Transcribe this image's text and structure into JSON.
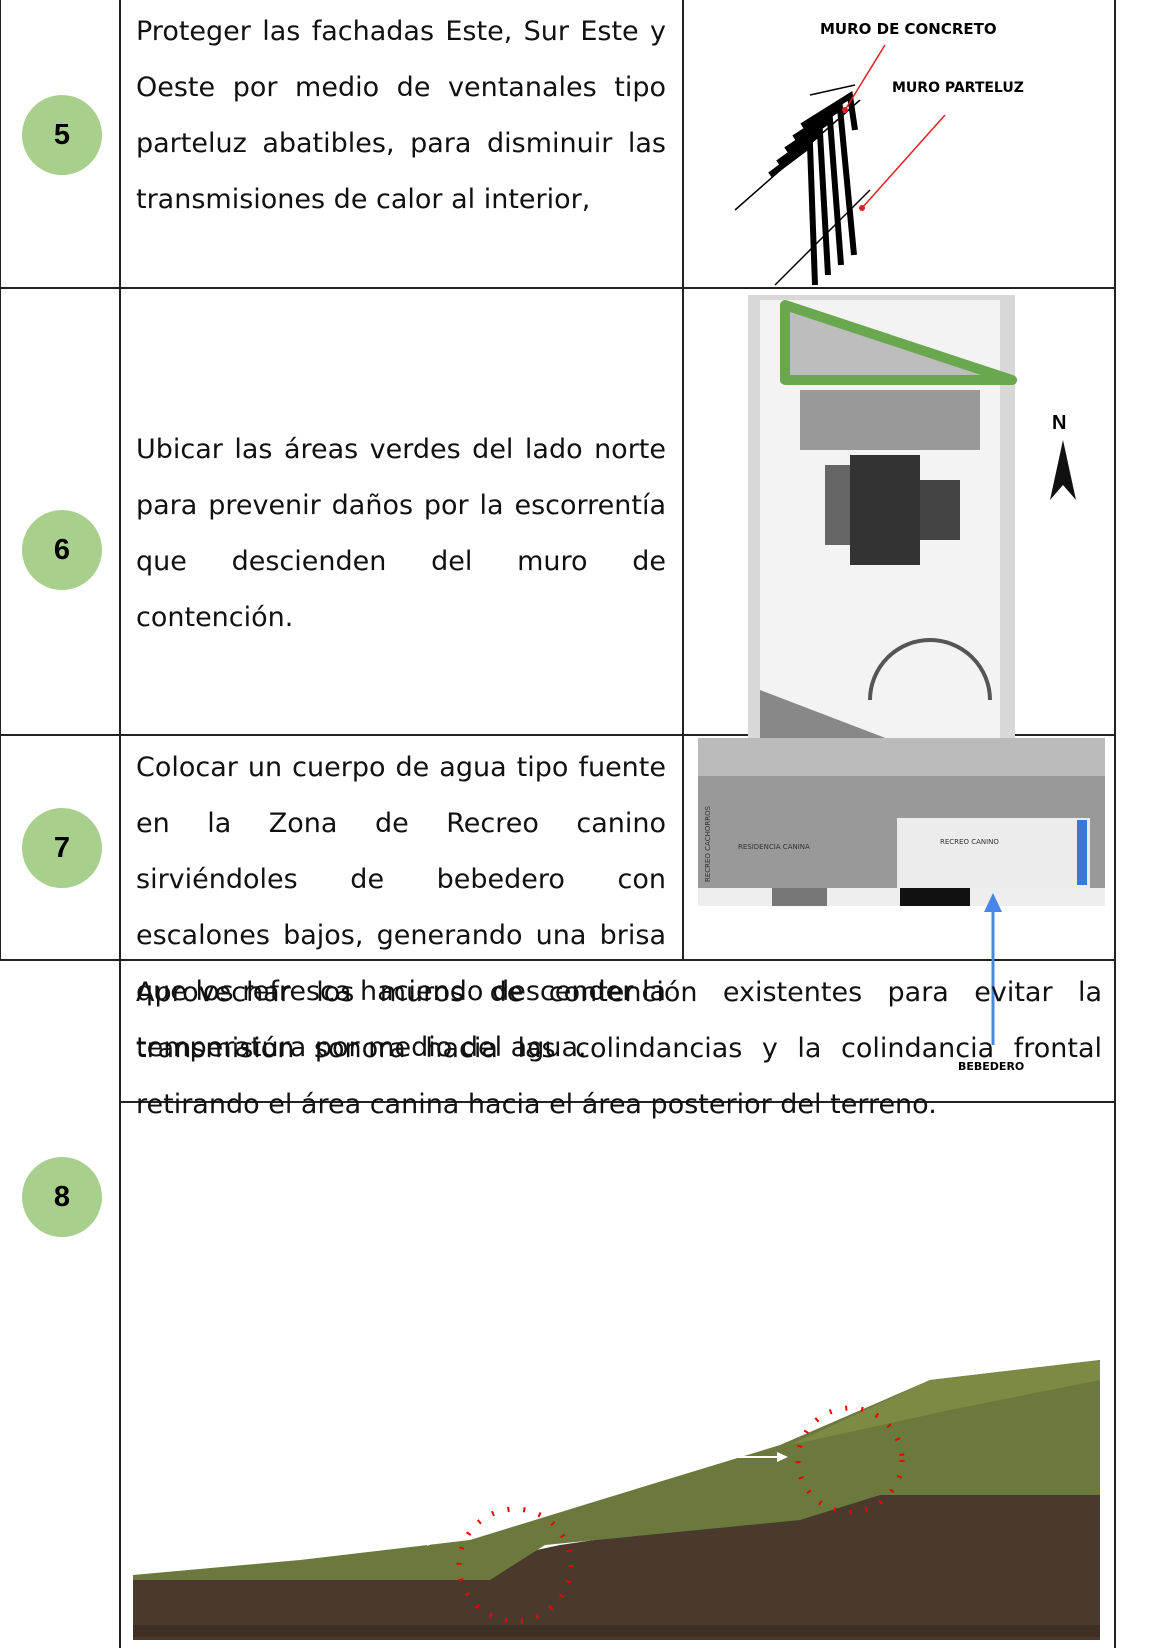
{
  "rows": [
    {
      "number": "5",
      "text": "Proteger las fachadas Este, Sur Este y Oeste por medio de ventanales tipo parteluz abatibles, para disminuir las transmisiones de calor al interior,",
      "figure": {
        "labels": [
          "MURO DE CONCRETO",
          "MURO PARTELUZ"
        ]
      }
    },
    {
      "number": "6",
      "text": "Ubicar las áreas verdes del lado norte para prevenir daños por la escorrentía que descienden del muro de contención.",
      "figure": {
        "labels": [
          "N"
        ]
      }
    },
    {
      "number": "7",
      "text": "Colocar un cuerpo de agua tipo fuente en la Zona de Recreo canino sirviéndoles de bebedero con escalones bajos, generando una brisa que los refresca haciendo descender la temperatura por medio del agua.",
      "figure": {
        "labels": [
          "RESIDENCIA CANINA",
          "RECREO CANINO",
          "RECREO CACHORROS",
          "BEBEDERO"
        ]
      }
    },
    {
      "number": "8",
      "text": "Aprovechar los muros de contención existentes para evitar la transmisión sonora hacia las colindancias y la colindancia frontal retirando el área canina hacia el área posterior del terreno."
    }
  ]
}
